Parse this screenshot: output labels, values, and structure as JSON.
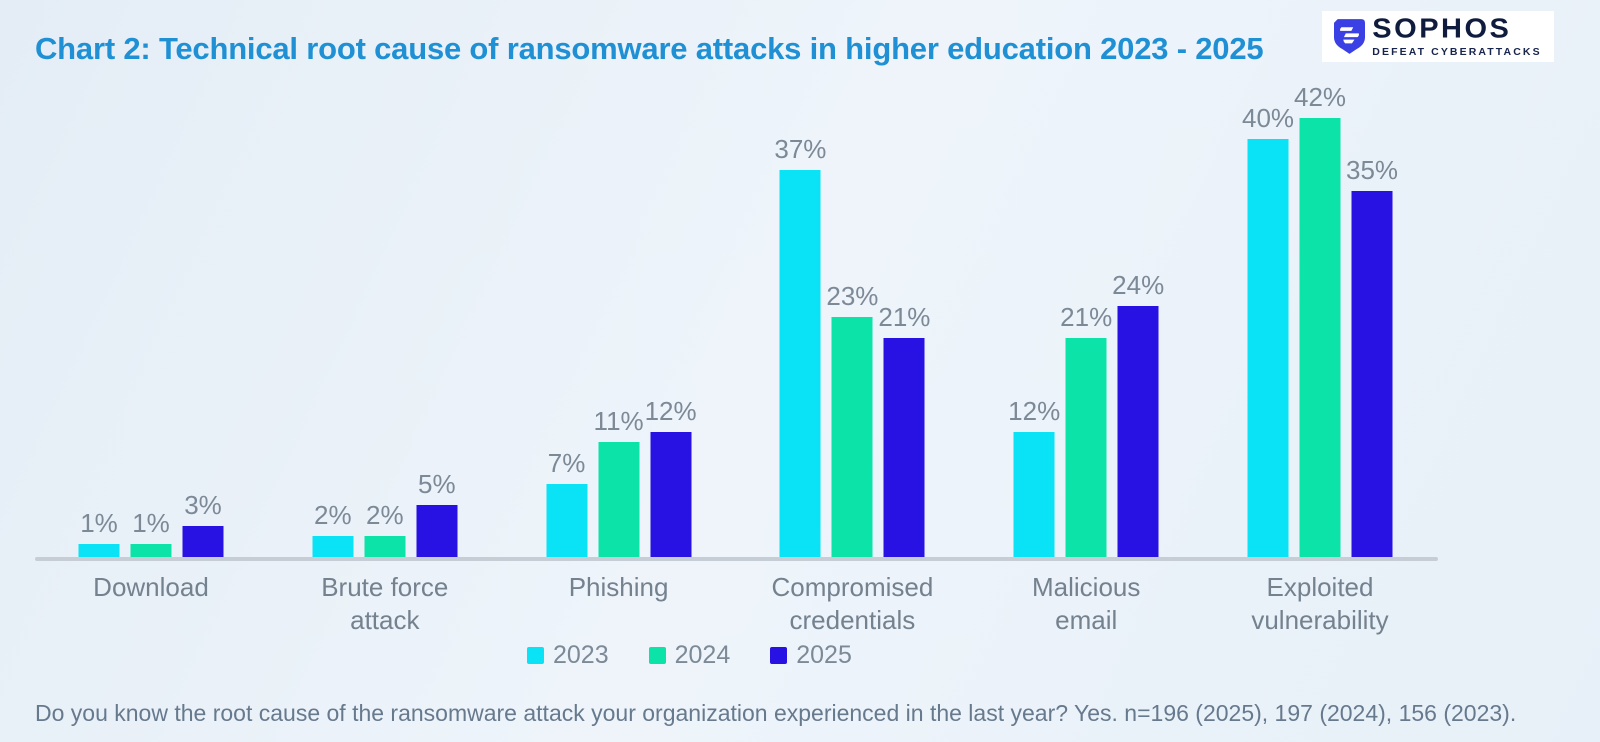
{
  "title": "Chart 2: Technical root cause of ransomware attacks in higher education 2023 - 2025",
  "logo": {
    "brand": "SOPHOS",
    "tagline": "DEFEAT CYBERATTACKS",
    "shield_color": "#3a40e3"
  },
  "colors": {
    "title_accent": "#1f90d4",
    "background": "#e9f1f8",
    "axis_line": "#c6cdd5",
    "label_gray": "#7c8997"
  },
  "chart_data": {
    "type": "bar",
    "categories": [
      "Download",
      "Brute force attack",
      "Phishing",
      "Compromised credentials",
      "Malicious email",
      "Exploited vulnerability"
    ],
    "series": [
      {
        "name": "2023",
        "color": "#0ae2f5",
        "values": [
          1,
          2,
          7,
          37,
          12,
          40
        ]
      },
      {
        "name": "2024",
        "color": "#0ce3a8",
        "values": [
          1,
          2,
          11,
          23,
          21,
          42
        ]
      },
      {
        "name": "2025",
        "color": "#2712e3",
        "values": [
          3,
          5,
          12,
          21,
          24,
          35
        ]
      }
    ],
    "value_suffix": "%",
    "value_labels_shown": true,
    "ylim": [
      0,
      42
    ],
    "grid": false,
    "legend_position": "bottom"
  },
  "footnote": "Do you know the root cause of the ransomware attack your organization experienced in the last year? Yes. n=196 (2025), 197 (2024), 156 (2023)."
}
